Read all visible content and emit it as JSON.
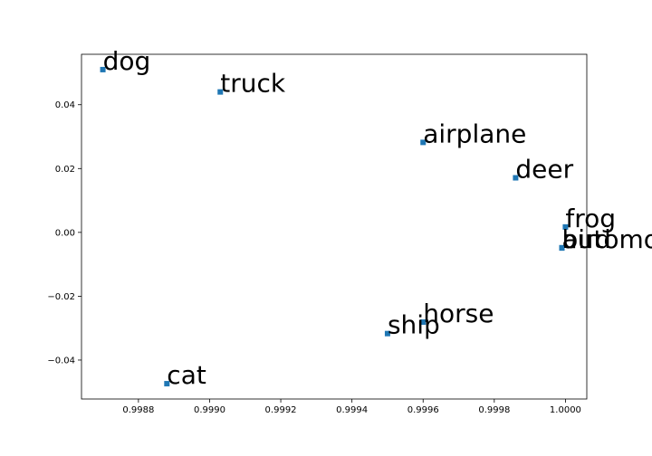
{
  "chart_data": {
    "type": "scatter",
    "title": "",
    "xlabel": "",
    "ylabel": "",
    "xlim": [
      0.99864,
      1.00006
    ],
    "ylim": [
      -0.0522,
      0.0558
    ],
    "x_ticks": [
      0.9988,
      0.999,
      0.9992,
      0.9994,
      0.9996,
      0.9998,
      1.0
    ],
    "x_tick_labels": [
      "0.9988",
      "0.9990",
      "0.9992",
      "0.9994",
      "0.9996",
      "0.9998",
      "1.0000"
    ],
    "y_ticks": [
      -0.04,
      -0.02,
      0.0,
      0.02,
      0.04
    ],
    "y_tick_labels": [
      "−0.04",
      "−0.02",
      "0.00",
      "0.02",
      "0.04"
    ],
    "grid": false,
    "marker_color": "#1f77b4",
    "points": [
      {
        "label": "dog",
        "x": 0.9987,
        "y": 0.051
      },
      {
        "label": "truck",
        "x": 0.99903,
        "y": 0.044
      },
      {
        "label": "airplane",
        "x": 0.9996,
        "y": 0.0282
      },
      {
        "label": "deer",
        "x": 0.99986,
        "y": 0.0171
      },
      {
        "label": "frog",
        "x": 1.0,
        "y": 0.0017
      },
      {
        "label": "bird",
        "x": 0.99999,
        "y": -0.0048
      },
      {
        "label": "automobile",
        "x": 0.99999,
        "y": -0.0049
      },
      {
        "label": "horse",
        "x": 0.9996,
        "y": -0.0281
      },
      {
        "label": "ship",
        "x": 0.9995,
        "y": -0.0317
      },
      {
        "label": "cat",
        "x": 0.99888,
        "y": -0.0474
      }
    ]
  }
}
